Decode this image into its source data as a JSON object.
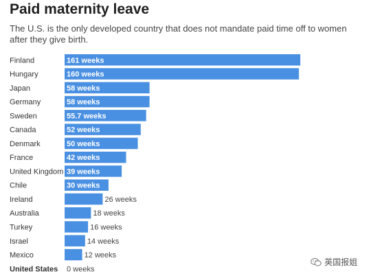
{
  "title": "Paid maternity leave",
  "subtitle": "The U.S. is the only developed country that does not mandate paid time off to women after they give birth.",
  "watermark": "英国报姐",
  "colors": {
    "bar": "#4a90e2",
    "label_inside": "#ffffff",
    "label_outside": "#444444"
  },
  "chart_data": {
    "type": "bar",
    "orientation": "horizontal",
    "unit": "weeks",
    "categories": [
      "Finland",
      "Hungary",
      "Japan",
      "Germany",
      "Sweden",
      "Canada",
      "Denmark",
      "France",
      "United Kingdom",
      "Chile",
      "Ireland",
      "Australia",
      "Turkey",
      "Israel",
      "Mexico",
      "United States"
    ],
    "values": [
      161,
      160,
      58,
      58,
      55.7,
      52,
      50,
      42,
      39,
      30,
      26,
      18,
      16,
      14,
      12,
      0
    ],
    "data_labels": [
      "161 weeks",
      "160 weeks",
      "58 weeks",
      "58 weeks",
      "55.7 weeks",
      "52 weeks",
      "50 weeks",
      "42 weeks",
      "39 weeks",
      "30 weeks",
      "26 weeks",
      "18 weeks",
      "16 weeks",
      "14 weeks",
      "12 weeks",
      "0 weeks"
    ],
    "highlight": "United States",
    "xlim": [
      0,
      161
    ],
    "grid": false
  }
}
